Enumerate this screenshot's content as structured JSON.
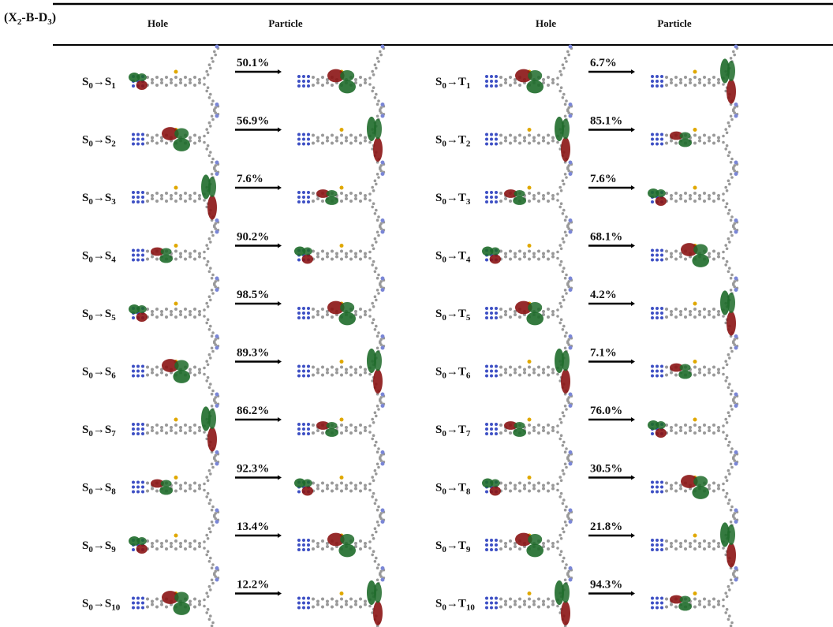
{
  "header": {
    "title_parts": [
      "(X",
      "2",
      "-B-D",
      "3",
      ")"
    ],
    "columns": [
      "Hole",
      "Particle",
      "Hole",
      "Particle"
    ]
  },
  "ground_state": {
    "symbol": "S",
    "index": "0"
  },
  "arrow": "→",
  "rows": [
    {
      "singlet": {
        "symbol": "S",
        "index": "1",
        "percent": "50.1%"
      },
      "triplet": {
        "symbol": "T",
        "index": "1",
        "percent": "6.7%"
      }
    },
    {
      "singlet": {
        "symbol": "S",
        "index": "2",
        "percent": "56.9%"
      },
      "triplet": {
        "symbol": "T",
        "index": "2",
        "percent": "85.1%"
      }
    },
    {
      "singlet": {
        "symbol": "S",
        "index": "3",
        "percent": "7.6%"
      },
      "triplet": {
        "symbol": "T",
        "index": "3",
        "percent": "7.6%"
      }
    },
    {
      "singlet": {
        "symbol": "S",
        "index": "4",
        "percent": "90.2%"
      },
      "triplet": {
        "symbol": "T",
        "index": "4",
        "percent": "68.1%"
      }
    },
    {
      "singlet": {
        "symbol": "S",
        "index": "5",
        "percent": "98.5%"
      },
      "triplet": {
        "symbol": "T",
        "index": "5",
        "percent": "4.2%"
      }
    },
    {
      "singlet": {
        "symbol": "S",
        "index": "6",
        "percent": "89.3%"
      },
      "triplet": {
        "symbol": "T",
        "index": "6",
        "percent": "7.1%"
      }
    },
    {
      "singlet": {
        "symbol": "S",
        "index": "7",
        "percent": "86.2%"
      },
      "triplet": {
        "symbol": "T",
        "index": "7",
        "percent": "76.0%"
      }
    },
    {
      "singlet": {
        "symbol": "S",
        "index": "8",
        "percent": "92.3%"
      },
      "triplet": {
        "symbol": "T",
        "index": "8",
        "percent": "30.5%"
      }
    },
    {
      "singlet": {
        "symbol": "S",
        "index": "9",
        "percent": "13.4%"
      },
      "triplet": {
        "symbol": "T",
        "index": "9",
        "percent": "21.8%"
      }
    },
    {
      "singlet": {
        "symbol": "S",
        "index": "10",
        "percent": "12.2%"
      },
      "triplet": {
        "symbol": "T",
        "index": "10",
        "percent": "94.3%"
      }
    }
  ]
}
